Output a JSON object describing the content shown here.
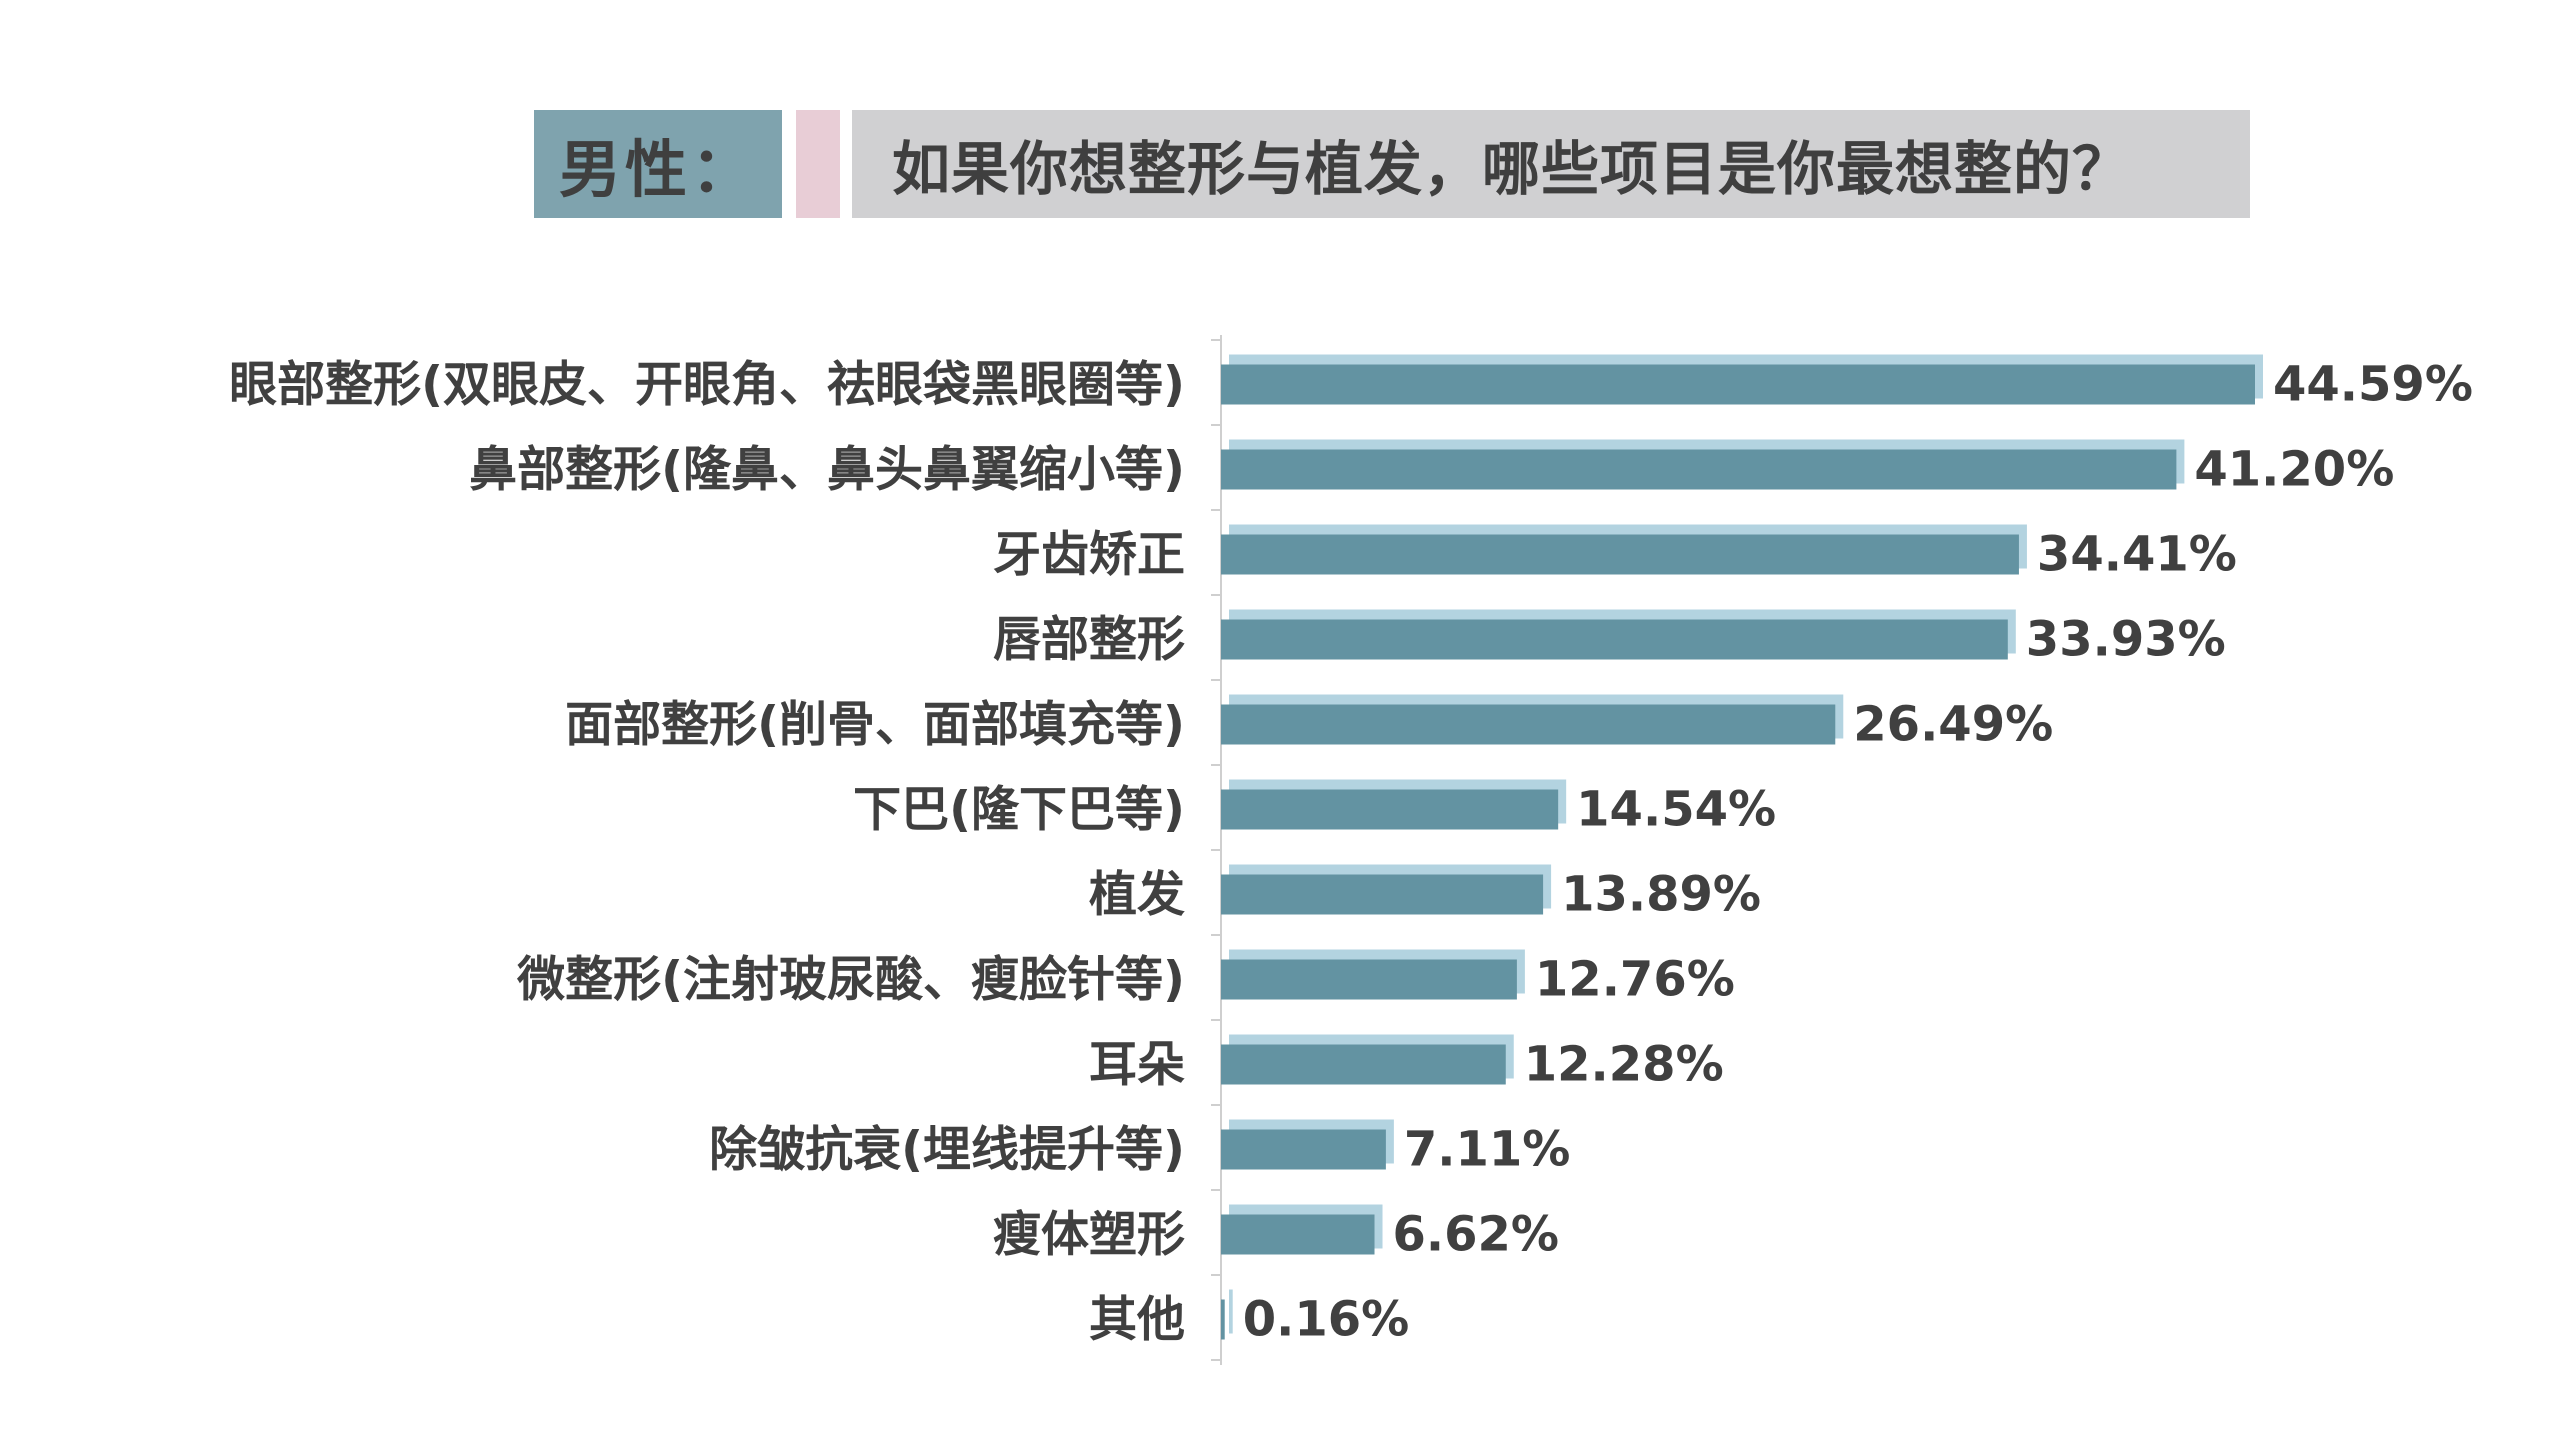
{
  "header": {
    "gender_label": "男性：",
    "question": "如果你想整形与植发，哪些项目是你最想整的？"
  },
  "colors": {
    "bar_front": "#6393a2",
    "bar_back": "#b3d3e0",
    "gender_bg": "#7fa3ae",
    "accent_bg": "#e8cdd6",
    "question_bg": "#d0d0d2",
    "text": "#404040",
    "axis": "#cfcfcf"
  },
  "chart_data": {
    "type": "bar",
    "orientation": "horizontal",
    "categories": [
      "眼部整形(双眼皮、开眼角、祛眼袋黑眼圈等)",
      "鼻部整形(隆鼻、鼻头鼻翼缩小等)",
      "牙齿矫正",
      "唇部整形",
      "面部整形(削骨、面部填充等)",
      "下巴(隆下巴等)",
      "植发",
      "微整形(注射玻尿酸、瘦脸针等)",
      "耳朵",
      "除皱抗衰(埋线提升等)",
      "瘦体塑形",
      "其他"
    ],
    "values": [
      44.59,
      41.2,
      34.41,
      33.93,
      26.49,
      14.54,
      13.89,
      12.76,
      12.28,
      7.11,
      6.62,
      0.16
    ],
    "value_labels": [
      "44.59%",
      "41.20%",
      "34.41%",
      "33.93%",
      "26.49%",
      "14.54%",
      "13.89%",
      "12.76%",
      "12.28%",
      "7.11%",
      "6.62%",
      "0.16%"
    ],
    "xlim": [
      0,
      45
    ],
    "grid": false,
    "legend": "none"
  }
}
